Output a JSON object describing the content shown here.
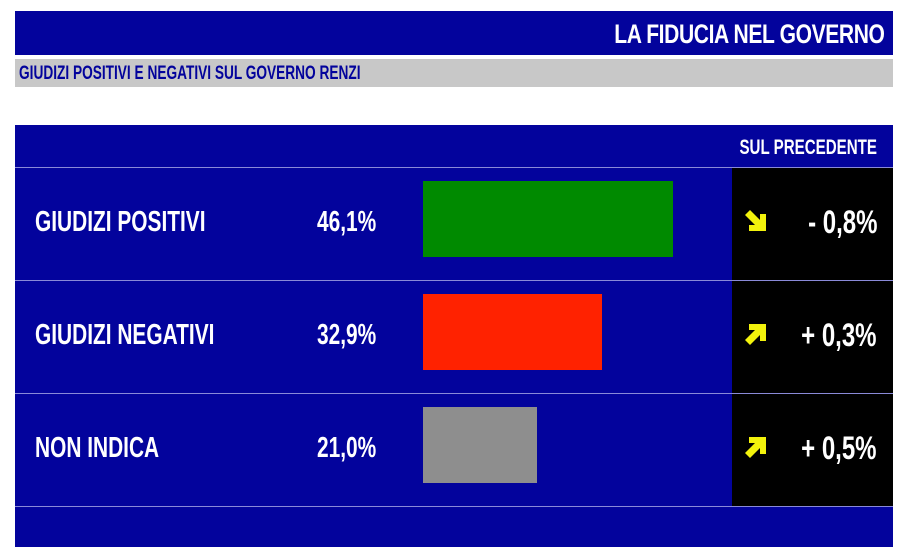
{
  "header": {
    "title": "LA FIDUCIA NEL GOVERNO"
  },
  "subheader": {
    "title": "GIUDIZI POSITIVI E NEGATIVI SUL GOVERNO RENZI"
  },
  "chart_data": {
    "type": "bar",
    "orientation": "horizontal",
    "categories": [
      "GIUDIZI POSITIVI",
      "GIUDIZI NEGATIVI",
      "NON INDICA"
    ],
    "values": [
      46.1,
      32.9,
      21.0
    ],
    "value_labels": [
      "46,1%",
      "32,9%",
      "21,0%"
    ],
    "colors": [
      "#008a00",
      "#ff2200",
      "#8e8e8e"
    ],
    "xlim": [
      0,
      60
    ],
    "change_header": "SUL PRECEDENTE",
    "changes": [
      {
        "label": "- 0,8%",
        "direction": "down",
        "icon": "arrow-down-right-icon",
        "color": "#f2f20c"
      },
      {
        "label": "+ 0,3%",
        "direction": "up",
        "icon": "arrow-up-right-icon",
        "color": "#f2f20c"
      },
      {
        "label": "+ 0,5%",
        "direction": "up",
        "icon": "arrow-up-right-icon",
        "color": "#f2f20c"
      }
    ]
  }
}
